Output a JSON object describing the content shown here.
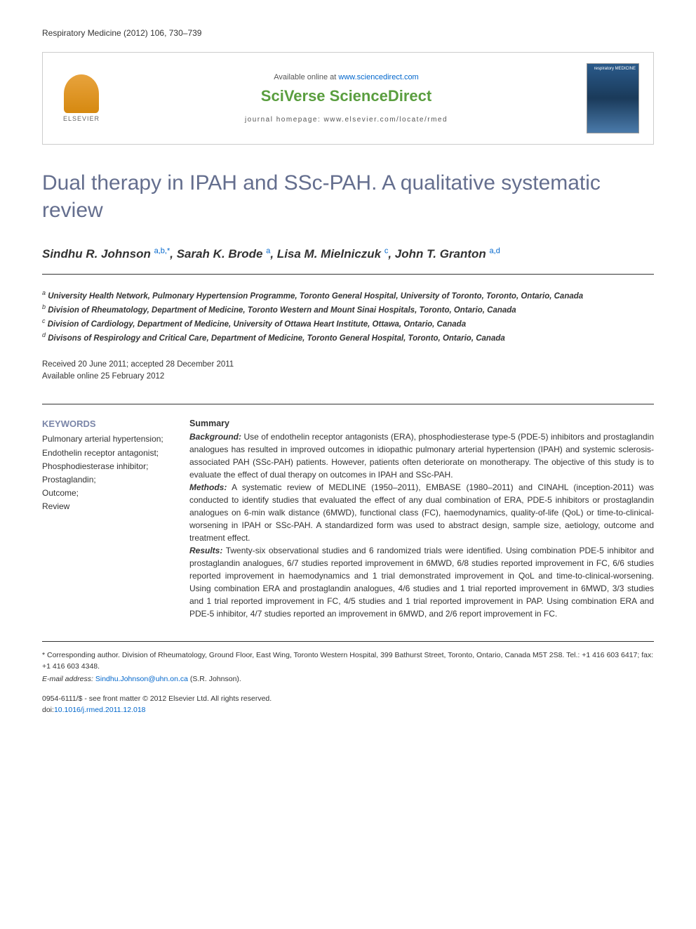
{
  "journal_ref": "Respiratory Medicine (2012) 106, 730–739",
  "header": {
    "available_text": "Available online at ",
    "available_link": "www.sciencedirect.com",
    "brand": "SciVerse ScienceDirect",
    "homepage_label": "journal homepage: www.elsevier.com/locate/rmed",
    "elsevier_label": "ELSEVIER",
    "cover_label": "respiratory MEDICINE"
  },
  "title": "Dual therapy in IPAH and SSc-PAH. A qualitative systematic review",
  "authors_html": "Sindhu R. Johnson <sup>a,b,*</sup>, Sarah K. Brode <sup>a</sup>, Lisa M. Mielniczuk <sup>c</sup>, John T. Granton <sup>a,d</sup>",
  "affiliations": {
    "a": "University Health Network, Pulmonary Hypertension Programme, Toronto General Hospital, University of Toronto, Toronto, Ontario, Canada",
    "b": "Division of Rheumatology, Department of Medicine, Toronto Western and Mount Sinai Hospitals, Toronto, Ontario, Canada",
    "c": "Division of Cardiology, Department of Medicine, University of Ottawa Heart Institute, Ottawa, Ontario, Canada",
    "d": "Divisons of Respirology and Critical Care, Department of Medicine, Toronto General Hospital, Toronto, Ontario, Canada"
  },
  "dates": {
    "received": "Received 20 June 2011; accepted 28 December 2011",
    "online": "Available online 25 February 2012"
  },
  "keywords": {
    "heading": "KEYWORDS",
    "items": "Pulmonary arterial hypertension;\nEndothelin receptor antagonist;\nPhosphodiesterase inhibitor;\nProstaglandin;\nOutcome;\nReview"
  },
  "summary": {
    "heading": "Summary",
    "background_label": "Background:",
    "background": " Use of endothelin receptor antagonists (ERA), phosphodiesterase type-5 (PDE-5) inhibitors and prostaglandin analogues has resulted in improved outcomes in idiopathic pulmonary arterial hypertension (IPAH) and systemic sclerosis-associated PAH (SSc-PAH) patients. However, patients often deteriorate on monotherapy. The objective of this study is to evaluate the effect of dual therapy on outcomes in IPAH and SSc-PAH.",
    "methods_label": "Methods:",
    "methods": " A systematic review of MEDLINE (1950–2011), EMBASE (1980–2011) and CINAHL (inception-2011) was conducted to identify studies that evaluated the effect of any dual combination of ERA, PDE-5 inhibitors or prostaglandin analogues on 6-min walk distance (6MWD), functional class (FC), haemodynamics, quality-of-life (QoL) or time-to-clinical-worsening in IPAH or SSc-PAH. A standardized form was used to abstract design, sample size, aetiology, outcome and treatment effect.",
    "results_label": "Results:",
    "results": " Twenty-six observational studies and 6 randomized trials were identified. Using combination PDE-5 inhibitor and prostaglandin analogues, 6/7 studies reported improvement in 6MWD, 6/8 studies reported improvement in FC, 6/6 studies reported improvement in haemodynamics and 1 trial demonstrated improvement in QoL and time-to-clinical-worsening. Using combination ERA and prostaglandin analogues, 4/6 studies and 1 trial reported improvement in 6MWD, 3/3 studies and 1 trial reported improvement in FC, 4/5 studies and 1 trial reported improvement in PAP. Using combination ERA and PDE-5 inhibitor, 4/7 studies reported an improvement in 6MWD, and 2/6 report improvement in FC."
  },
  "footer": {
    "corresponding": "* Corresponding author. Division of Rheumatology, Ground Floor, East Wing, Toronto Western Hospital, 399 Bathurst Street, Toronto, Ontario, Canada M5T 2S8. Tel.: +1 416 603 6417; fax: +1 416 603 4348.",
    "email_label": "E-mail address: ",
    "email": "Sindhu.Johnson@uhn.on.ca",
    "email_suffix": " (S.R. Johnson).",
    "copyright_line1": "0954-6111/$ - see front matter © 2012 Elsevier Ltd. All rights reserved.",
    "doi_prefix": "doi:",
    "doi": "10.1016/j.rmed.2011.12.018"
  },
  "colors": {
    "title_color": "#646e8e",
    "link_color": "#0066cc",
    "keywords_heading_color": "#7a85a8",
    "sciverse_color": "#5a9e3f"
  }
}
